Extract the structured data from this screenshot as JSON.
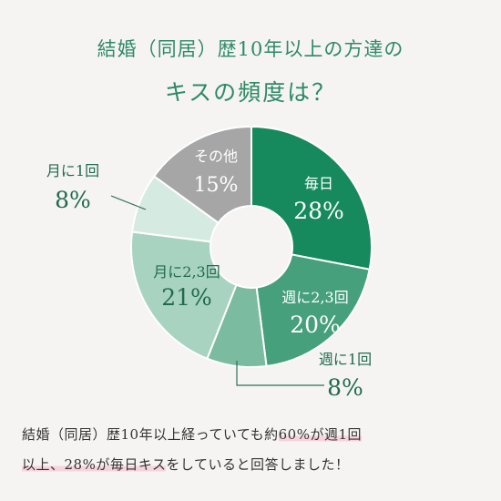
{
  "header": {
    "title_line1": "結婚（同居）歴10年以上の方達の",
    "title_line2": "キスの頻度は？"
  },
  "chart_data": {
    "type": "pie",
    "donut": true,
    "slices": [
      {
        "label": "毎日",
        "value": 28,
        "value_text": "28%",
        "color": "#168a5c",
        "text_color": "#ffffff",
        "label_placement": "inside"
      },
      {
        "label": "週に2,3回",
        "value": 20,
        "value_text": "20%",
        "color": "#46a07c",
        "text_color": "#ffffff",
        "label_placement": "inside"
      },
      {
        "label": "週に1回",
        "value": 8,
        "value_text": "8%",
        "color": "#7bbca1",
        "text_color": "#1f6b4e",
        "label_placement": "outside-bottom-right"
      },
      {
        "label": "月に2,3回",
        "value": 21,
        "value_text": "21%",
        "color": "#a9d3c1",
        "text_color": "#1f6b4e",
        "label_placement": "inside"
      },
      {
        "label": "月に1回",
        "value": 8,
        "value_text": "8%",
        "color": "#d5ebe2",
        "text_color": "#1f6b4e",
        "label_placement": "outside-left"
      },
      {
        "label": "その他",
        "value": 15,
        "value_text": "15%",
        "color": "#a6a6a6",
        "text_color": "#ffffff",
        "label_placement": "inside"
      }
    ]
  },
  "footer": {
    "line1_plain": "結婚（同居）歴10年以上経っていても約",
    "line1_highlight": "60%が週1回",
    "line2_highlight": "以上、28%が毎日キス",
    "line2_plain": "をしていると回答しました！"
  }
}
